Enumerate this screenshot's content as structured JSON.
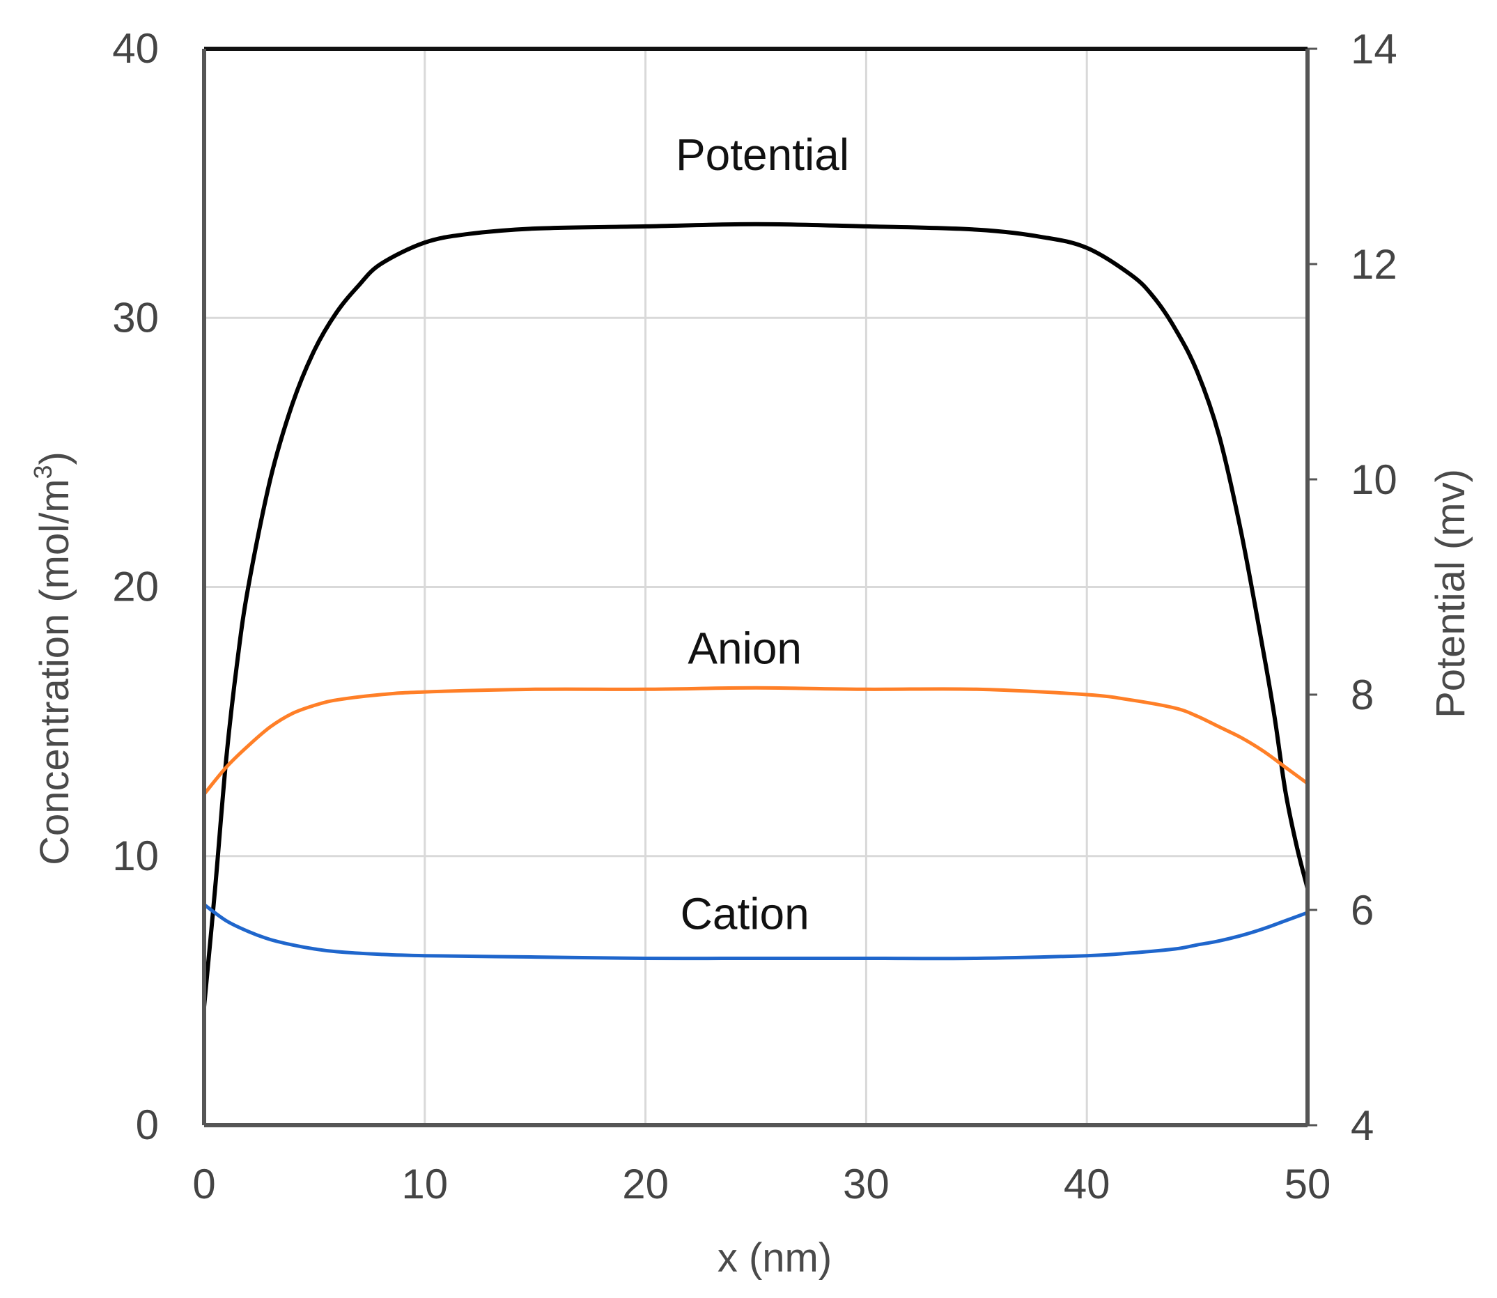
{
  "chart_data": {
    "type": "line",
    "title": "",
    "xlabel": "x (nm)",
    "ylabel": "Concentration (mol/m",
    "ylabel_sup": "3",
    "ylabel_close": ")",
    "y2label": "Potential (mv)",
    "xlim": [
      0,
      50
    ],
    "ylim": [
      0,
      40
    ],
    "y2lim": [
      4,
      14
    ],
    "xticks": [
      "0",
      "10",
      "20",
      "30",
      "40",
      "50"
    ],
    "yticks": [
      "0",
      "10",
      "20",
      "30",
      "40"
    ],
    "y2ticks": [
      "4",
      "6",
      "8",
      "10",
      "12",
      "14"
    ],
    "grid": true,
    "series": [
      {
        "name": "Potential",
        "axis": "right",
        "color": "#000000",
        "x": [
          0,
          0.5,
          1,
          1.5,
          2,
          3,
          4,
          5,
          6,
          7,
          8,
          10,
          12,
          15,
          20,
          25,
          30,
          35,
          38,
          40,
          42,
          43,
          44,
          45,
          46,
          47,
          48,
          48.5,
          49,
          49.5,
          50
        ],
        "y": [
          5.1,
          6.2,
          7.4,
          8.3,
          9.0,
          10.0,
          10.7,
          11.2,
          11.55,
          11.8,
          12.0,
          12.2,
          12.28,
          12.33,
          12.35,
          12.37,
          12.35,
          12.32,
          12.25,
          12.15,
          11.9,
          11.7,
          11.4,
          11.0,
          10.4,
          9.5,
          8.4,
          7.8,
          7.1,
          6.6,
          6.2
        ]
      },
      {
        "name": "Anion",
        "axis": "left",
        "color": "#ff7f27",
        "x": [
          0,
          1,
          2,
          3,
          4,
          5,
          6,
          8,
          10,
          15,
          20,
          25,
          30,
          35,
          40,
          42,
          44,
          45,
          46,
          47,
          48,
          49,
          50
        ],
        "y": [
          12.3,
          13.3,
          14.1,
          14.8,
          15.3,
          15.6,
          15.8,
          16.0,
          16.1,
          16.2,
          16.2,
          16.25,
          16.2,
          16.2,
          16.0,
          15.8,
          15.5,
          15.2,
          14.8,
          14.4,
          13.9,
          13.3,
          12.7
        ]
      },
      {
        "name": "Cation",
        "axis": "left",
        "color": "#1f66cc",
        "x": [
          0,
          1,
          2,
          3,
          4,
          5,
          6,
          8,
          10,
          15,
          20,
          25,
          30,
          35,
          40,
          42,
          44,
          45,
          46,
          47,
          48,
          49,
          50
        ],
        "y": [
          8.2,
          7.6,
          7.2,
          6.9,
          6.7,
          6.55,
          6.45,
          6.35,
          6.3,
          6.25,
          6.2,
          6.2,
          6.2,
          6.2,
          6.3,
          6.4,
          6.55,
          6.7,
          6.85,
          7.05,
          7.3,
          7.6,
          7.9
        ]
      }
    ]
  }
}
